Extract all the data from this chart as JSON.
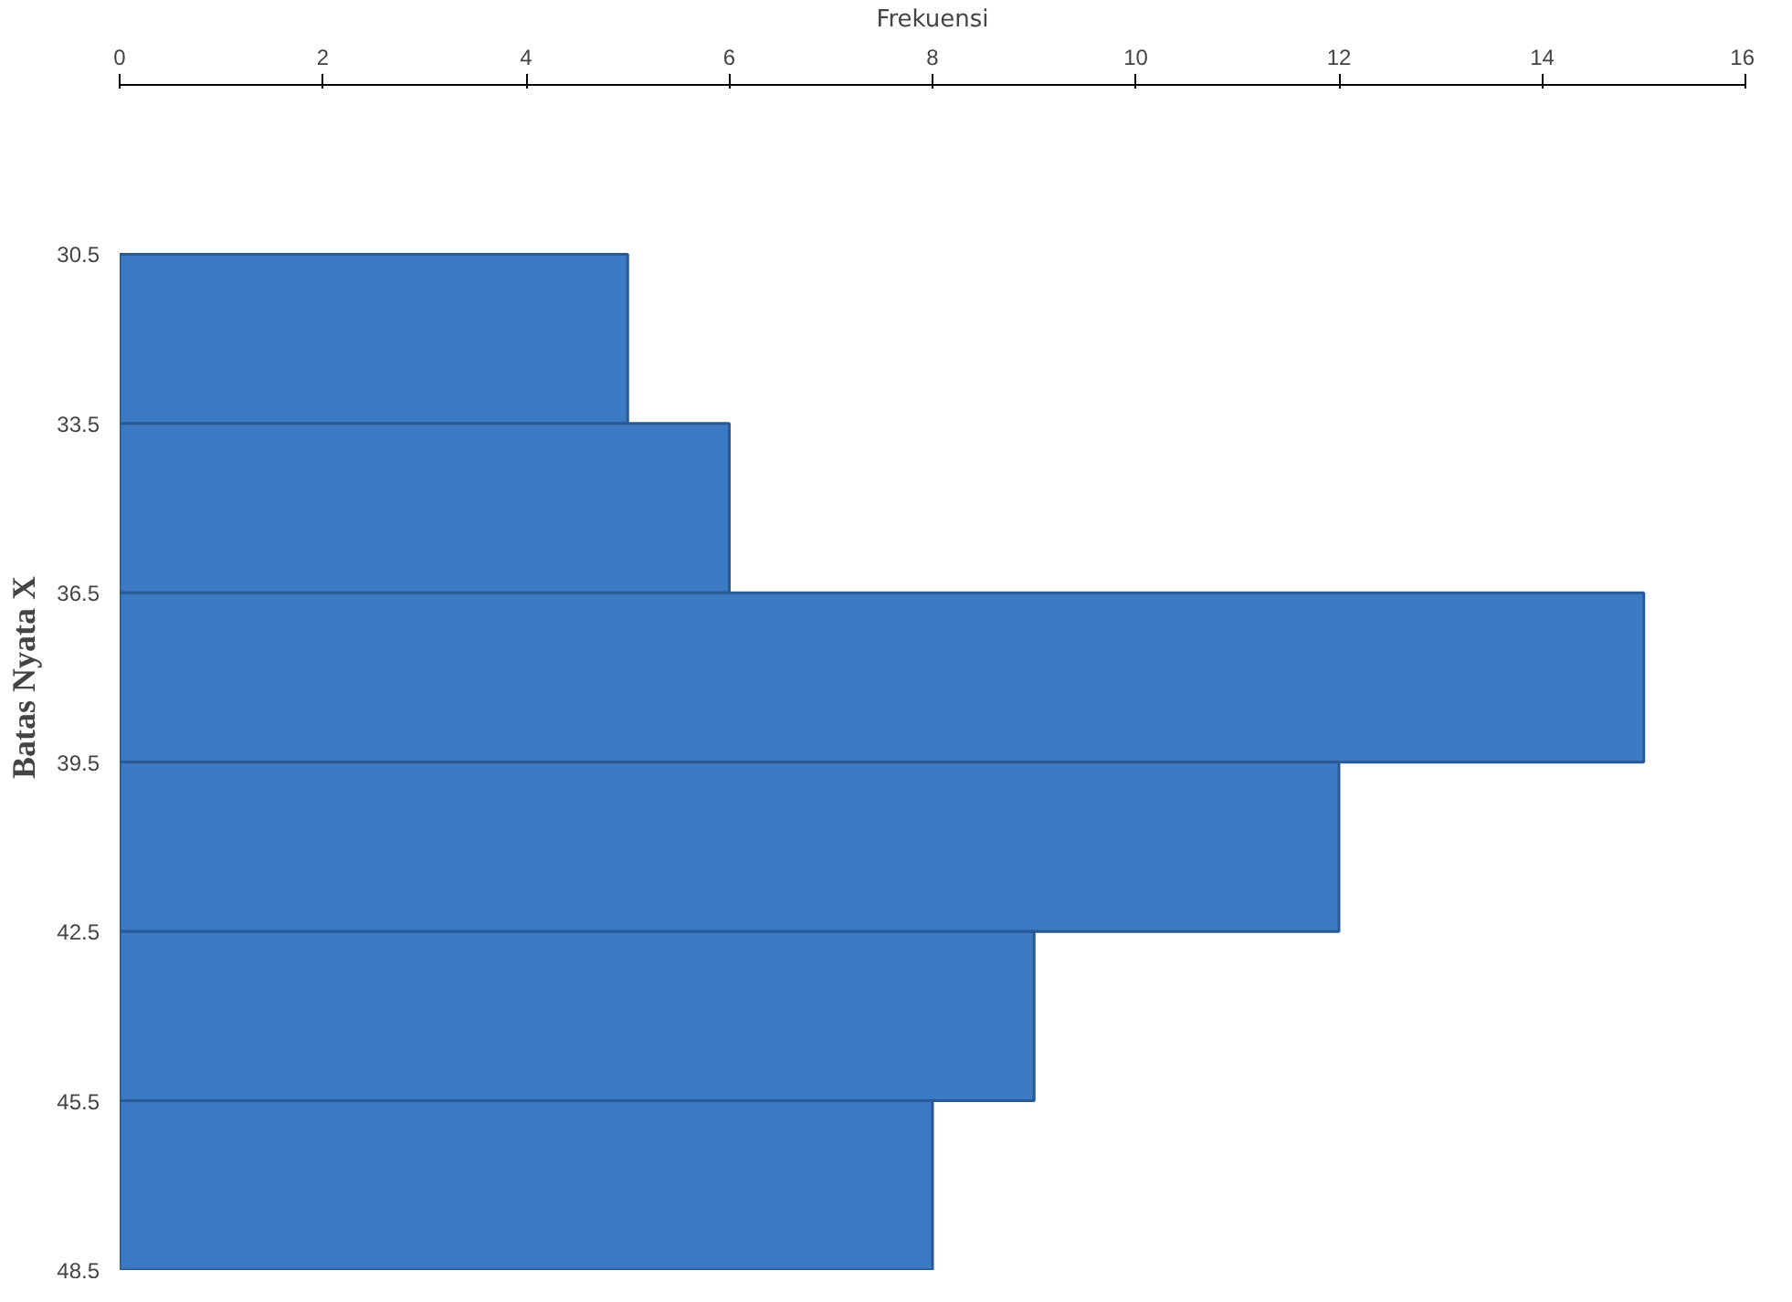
{
  "chart_data": {
    "type": "histogram",
    "orientation": "horizontal",
    "xlabel": "Frekuensi",
    "ylabel": "Batas Nyata X",
    "bins": [
      30.5,
      33.5,
      36.5,
      39.5,
      42.5,
      45.5,
      48.5
    ],
    "values": [
      5,
      6,
      15,
      12,
      9,
      8
    ],
    "color": "#3c7ac4",
    "xlim": [
      0,
      16
    ],
    "xticks": [
      0,
      2,
      4,
      6,
      8,
      10,
      12,
      14,
      16
    ],
    "ylim": [
      48.5,
      27.5
    ],
    "yticks": [
      30.5,
      33.5,
      36.5,
      39.5,
      42.5,
      45.5,
      48.5
    ],
    "grid": false
  }
}
